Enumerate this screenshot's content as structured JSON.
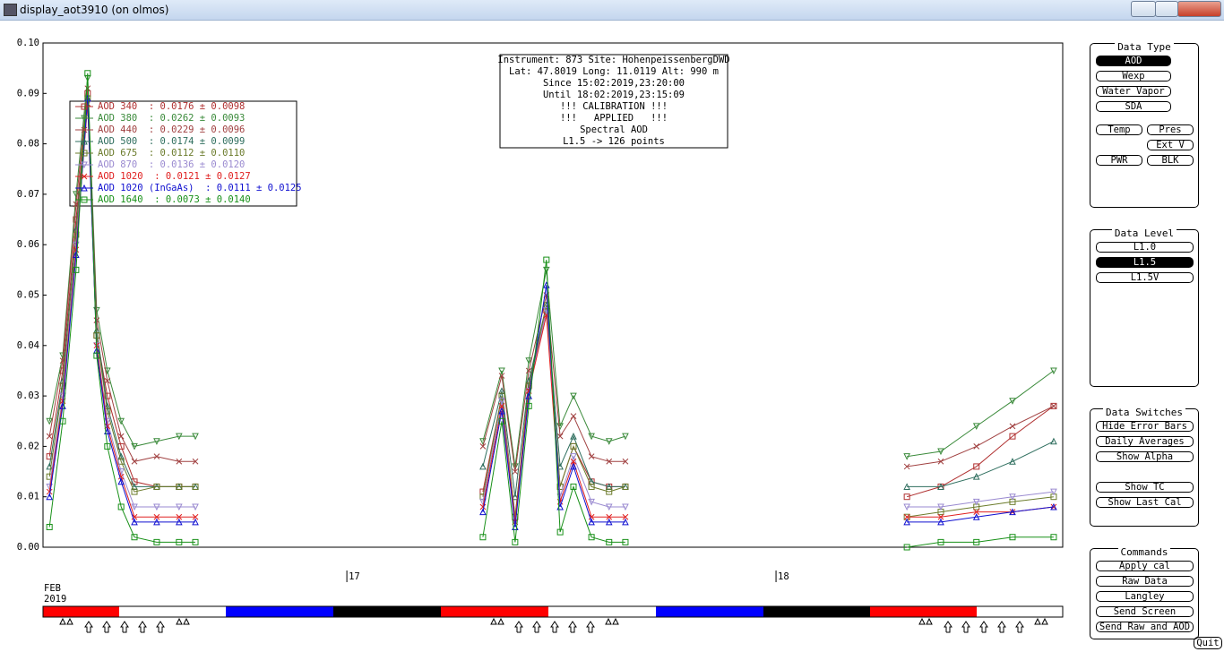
{
  "window": {
    "title": "display_aot3910 (on olmos)",
    "quit": "Quit"
  },
  "chart_data": {
    "type": "line",
    "ylim": [
      0,
      0.1
    ],
    "yticks": [
      {
        "value": 0,
        "label": "0.00"
      },
      {
        "value": 0.01,
        "label": "0.01"
      },
      {
        "value": 0.02,
        "label": "0.02"
      },
      {
        "value": 0.03,
        "label": "0.03"
      },
      {
        "value": 0.04,
        "label": "0.04"
      },
      {
        "value": 0.05,
        "label": "0.05"
      },
      {
        "value": 0.06,
        "label": "0.06"
      },
      {
        "value": 0.07,
        "label": "0.07"
      },
      {
        "value": 0.08,
        "label": "0.08"
      },
      {
        "value": 0.09,
        "label": "0.09"
      },
      {
        "value": 0.1,
        "label": "0.10"
      }
    ],
    "xlim": [
      16.292,
      18.668
    ],
    "xticks": [
      17,
      18
    ],
    "date_label": [
      "FEB",
      "2019"
    ],
    "annotations": [
      "Instrument: 873 Site: HohenpeissenbergDWD",
      "Lat: 47.8019 Long: 11.0119 Alt: 990 m",
      "Since 15:02:2019,23:20:00",
      "Until 18:02:2019,23:15:09",
      "!!! CALIBRATION !!!",
      "!!!   APPLIED   !!!",
      "Spectral AOD",
      "L1.5 -> 126 points"
    ],
    "x": [
      16.307,
      16.338,
      16.369,
      16.396,
      16.417,
      16.442,
      16.474,
      16.505,
      16.557,
      16.609,
      16.647,
      null,
      17.317,
      17.361,
      17.392,
      17.424,
      17.465,
      17.497,
      17.528,
      17.57,
      17.611,
      17.649,
      null,
      18.305,
      18.384,
      18.467,
      18.551,
      18.647
    ],
    "series": [
      {
        "name": "AOD 340  : 0.0176 ± 0.0098",
        "color": "#b03030",
        "marker": "square",
        "values": [
          0.018,
          0.035,
          0.065,
          0.09,
          0.042,
          0.03,
          0.02,
          0.013,
          0.012,
          0.012,
          0.012,
          null,
          0.011,
          0.03,
          0.006,
          0.032,
          0.047,
          0.012,
          0.02,
          0.013,
          0.012,
          0.012,
          null,
          0.01,
          0.012,
          0.016,
          0.022,
          0.028
        ]
      },
      {
        "name": "AOD 380  : 0.0262 ± 0.0093",
        "color": "#3a8a3a",
        "marker": "triangle-down",
        "values": [
          0.025,
          0.038,
          0.07,
          0.093,
          0.047,
          0.035,
          0.025,
          0.02,
          0.021,
          0.022,
          0.022,
          null,
          0.021,
          0.035,
          0.016,
          0.037,
          0.055,
          0.024,
          0.03,
          0.022,
          0.021,
          0.022,
          null,
          0.018,
          0.019,
          0.024,
          0.029,
          0.035
        ]
      },
      {
        "name": "AOD 440  : 0.0229 ± 0.0096",
        "color": "#a04040",
        "marker": "x",
        "values": [
          0.022,
          0.037,
          0.068,
          0.091,
          0.045,
          0.033,
          0.022,
          0.017,
          0.018,
          0.017,
          0.017,
          null,
          0.02,
          0.034,
          0.015,
          0.035,
          0.05,
          0.022,
          0.026,
          0.018,
          0.017,
          0.017,
          null,
          0.016,
          0.017,
          0.02,
          0.024,
          0.028
        ]
      },
      {
        "name": "AOD 500  : 0.0174 ± 0.0099",
        "color": "#2e6e5e",
        "marker": "triangle-up",
        "values": [
          0.016,
          0.033,
          0.063,
          0.089,
          0.043,
          0.028,
          0.018,
          0.012,
          0.012,
          0.012,
          0.012,
          null,
          0.016,
          0.031,
          0.01,
          0.033,
          0.048,
          0.016,
          0.022,
          0.013,
          0.012,
          0.012,
          null,
          0.012,
          0.012,
          0.014,
          0.017,
          0.021
        ]
      },
      {
        "name": "AOD 675  : 0.0112 ± 0.0110",
        "color": "#6b7b2b",
        "marker": "square",
        "values": [
          0.014,
          0.032,
          0.062,
          0.089,
          0.042,
          0.027,
          0.017,
          0.011,
          0.012,
          0.012,
          0.012,
          null,
          0.01,
          0.03,
          0.006,
          0.032,
          0.048,
          0.012,
          0.02,
          0.012,
          0.011,
          0.012,
          null,
          0.006,
          0.007,
          0.008,
          0.009,
          0.01
        ]
      },
      {
        "name": "AOD 870  : 0.0136 ± 0.0120",
        "color": "#9a8ad0",
        "marker": "triangle-down",
        "values": [
          0.012,
          0.03,
          0.06,
          0.088,
          0.04,
          0.025,
          0.015,
          0.008,
          0.008,
          0.008,
          0.008,
          null,
          0.009,
          0.029,
          0.005,
          0.031,
          0.047,
          0.01,
          0.018,
          0.009,
          0.008,
          0.008,
          null,
          0.008,
          0.008,
          0.009,
          0.01,
          0.011
        ]
      },
      {
        "name": "AOD 1020  : 0.0121 ± 0.0127",
        "color": "#e02020",
        "marker": "x",
        "values": [
          0.011,
          0.029,
          0.059,
          0.088,
          0.04,
          0.024,
          0.014,
          0.006,
          0.006,
          0.006,
          0.006,
          null,
          0.008,
          0.028,
          0.005,
          0.031,
          0.046,
          0.009,
          0.017,
          0.006,
          0.006,
          0.006,
          null,
          0.006,
          0.006,
          0.007,
          0.007,
          0.008
        ]
      },
      {
        "name": "AOD 1020 (InGaAs)  : 0.0111 ± 0.0125",
        "color": "#1010d0",
        "marker": "triangle-up",
        "values": [
          0.01,
          0.028,
          0.058,
          0.089,
          0.039,
          0.023,
          0.013,
          0.005,
          0.005,
          0.005,
          0.005,
          null,
          0.007,
          0.027,
          0.004,
          0.03,
          0.052,
          0.008,
          0.016,
          0.005,
          0.005,
          0.005,
          null,
          0.005,
          0.005,
          0.006,
          0.007,
          0.008
        ]
      },
      {
        "name": "AOD 1640  : 0.0073 ± 0.0140",
        "color": "#189018",
        "marker": "square",
        "values": [
          0.004,
          0.025,
          0.055,
          0.094,
          0.038,
          0.02,
          0.008,
          0.002,
          0.001,
          0.001,
          0.001,
          null,
          0.002,
          0.025,
          0.001,
          0.028,
          0.057,
          0.003,
          0.012,
          0.002,
          0.001,
          0.001,
          null,
          0.0,
          0.001,
          0.001,
          0.002,
          0.002
        ]
      }
    ]
  },
  "panels": [
    {
      "title": "Data Type",
      "buttons": [
        {
          "label": "AOD",
          "selected": true
        },
        {
          "label": "Wexp",
          "selected": false
        },
        {
          "label": "Water Vapor",
          "selected": false
        },
        {
          "label": "SDA",
          "selected": false
        },
        {
          "label": "Temp",
          "selected": false
        },
        {
          "label": "Pres",
          "selected": false
        },
        {
          "label": "Ext V",
          "selected": false
        },
        {
          "label": "PWR",
          "selected": false
        },
        {
          "label": "BLK",
          "selected": false
        }
      ]
    },
    {
      "title": "Data Level",
      "buttons": [
        {
          "label": "L1.0",
          "selected": false
        },
        {
          "label": "L1.5",
          "selected": true
        },
        {
          "label": "L1.5V",
          "selected": false
        }
      ]
    },
    {
      "title": "Data Switches",
      "buttons": [
        {
          "label": "Hide Error Bars",
          "selected": false
        },
        {
          "label": "Daily Averages",
          "selected": false
        },
        {
          "label": "Show Alpha",
          "selected": false
        },
        {
          "label": "Show TC",
          "selected": false
        },
        {
          "label": "Show Last Cal",
          "selected": false
        }
      ]
    },
    {
      "title": "Commands",
      "buttons": [
        {
          "label": "Apply cal",
          "selected": false
        },
        {
          "label": "Raw Data",
          "selected": false
        },
        {
          "label": "Langley",
          "selected": false
        },
        {
          "label": "Send Screen",
          "selected": false
        },
        {
          "label": "Send Raw and AOD",
          "selected": false
        }
      ]
    }
  ]
}
